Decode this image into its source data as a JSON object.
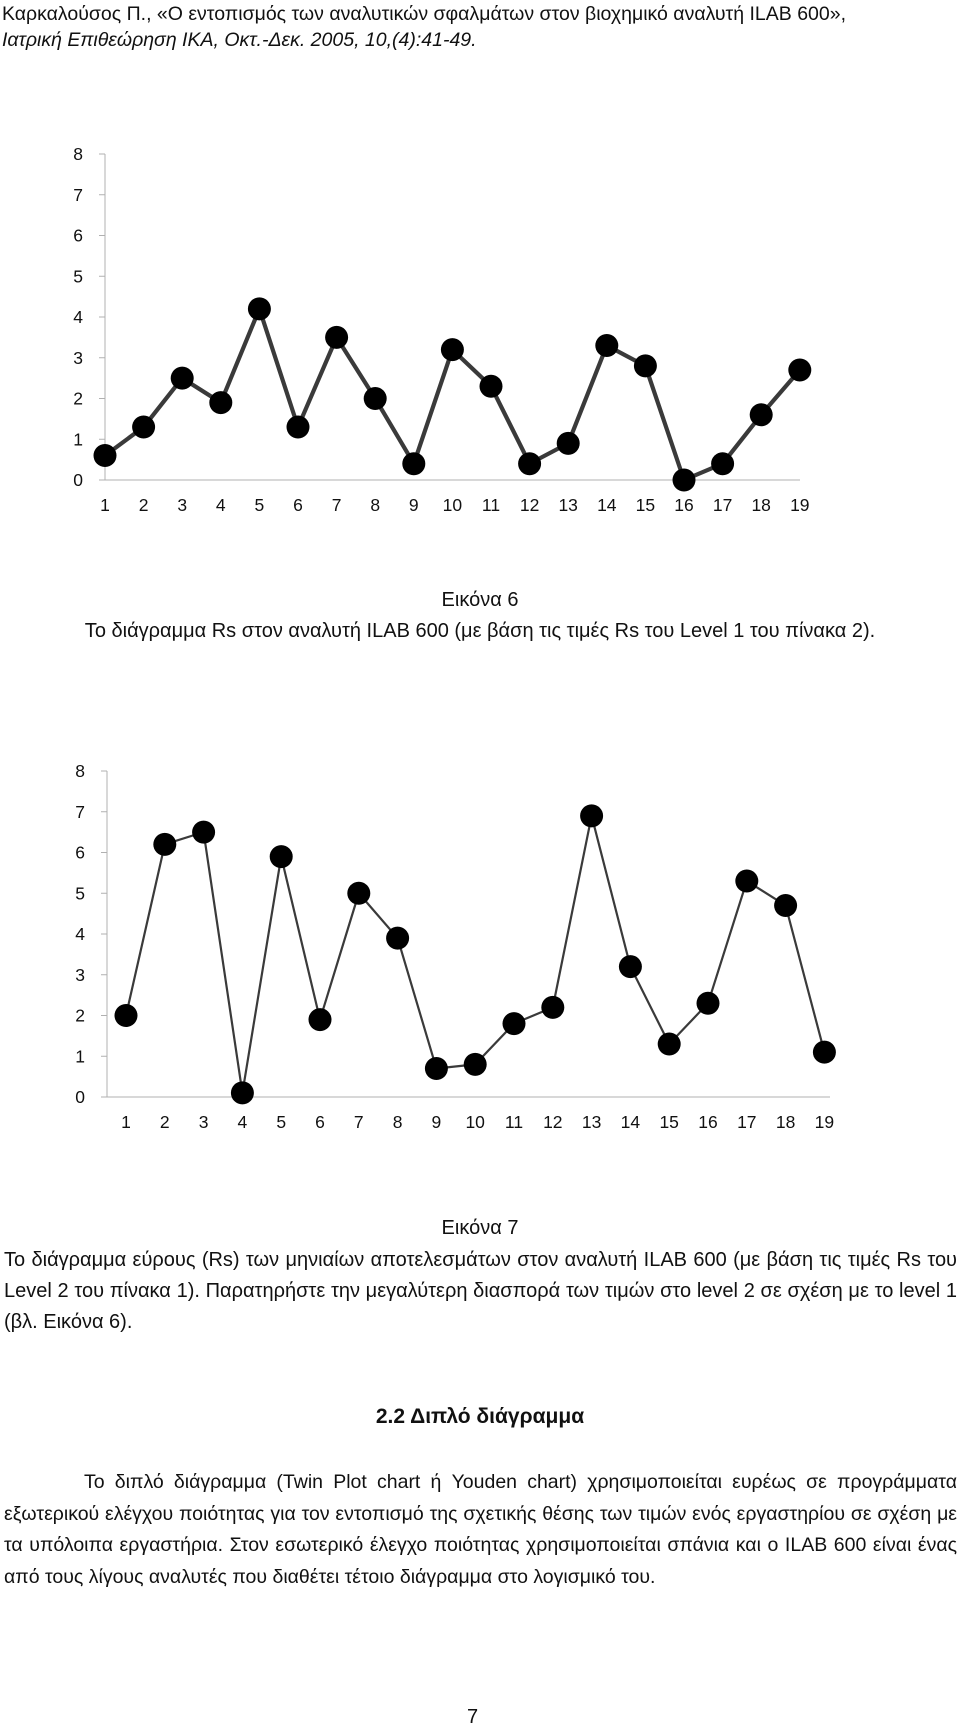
{
  "header": {
    "citation_line1": "Καρκαλούσος Π., «Ο εντοπισμός των αναλυτικών σφαλμάτων στον βιοχημικό αναλυτή ILAB 600»,",
    "citation_line2": "Ιατρική Επιθεώρηση ΙΚΑ, Οκτ.-Δεκ. 2005, 10,(4):41-49."
  },
  "figure6": {
    "label": "Εικόνα 6",
    "caption": "Το διάγραμμα Rs στον αναλυτή ILAB 600 (με βάση τις τιμές Rs του Level 1 του πίνακα 2)."
  },
  "figure7": {
    "label": "Εικόνα 7",
    "caption": "Το διάγραμμα εύρους (Rs) των μηνιαίων αποτελεσμάτων στον αναλυτή ILAB 600 (με βάση τις τιμές Rs του Level 2 του πίνακα 1). Παρατηρήστε την μεγαλύτερη διασπορά των τιμών στο level 2 σε σχέση με το level 1 (βλ. Εικόνα 6)."
  },
  "section": {
    "heading": "2.2 Διπλό διάγραμμα",
    "paragraph": "Το διπλό διάγραμμα (Twin Plot chart ή Youden chart) χρησιμοποιείται ευρέως σε προγράμματα εξωτερικού ελέγχου ποιότητας για τον εντοπισμό της σχετικής θέσης των τιμών ενός εργαστηρίου σε σχέση με τα υπόλοιπα εργαστήρια. Στον εσωτερικό έλεγχο ποιότητας χρησιμοποιείται σπάνια και ο ILAB 600 είναι ένας από τους λίγους αναλυτές που διαθέτει τέτοιο διάγραμμα στο λογισμικό του."
  },
  "page_number": "7",
  "chart_data": [
    {
      "type": "line",
      "title": "",
      "xlabel": "",
      "ylabel": "",
      "categories": [
        "1",
        "2",
        "3",
        "4",
        "5",
        "6",
        "7",
        "8",
        "9",
        "10",
        "11",
        "12",
        "13",
        "14",
        "15",
        "16",
        "17",
        "18",
        "19"
      ],
      "series": [
        {
          "values": [
            0.6,
            1.3,
            2.5,
            1.9,
            4.2,
            1.3,
            3.5,
            2.0,
            0.4,
            3.2,
            2.3,
            0.4,
            0.9,
            3.3,
            2.8,
            0.0,
            0.4,
            1.6,
            2.7
          ]
        }
      ],
      "ylim": [
        0,
        8
      ],
      "yticks": [
        "0",
        "1",
        "2",
        "3",
        "4",
        "5",
        "6",
        "7",
        "8"
      ],
      "grid": false,
      "legend": "none",
      "line_color": "#3a3a3a",
      "marker_color": "#000000"
    },
    {
      "type": "line",
      "title": "",
      "xlabel": "",
      "ylabel": "",
      "categories": [
        "1",
        "2",
        "3",
        "4",
        "5",
        "6",
        "7",
        "8",
        "9",
        "10",
        "11",
        "12",
        "13",
        "14",
        "15",
        "16",
        "17",
        "18",
        "19"
      ],
      "series": [
        {
          "values": [
            2.0,
            6.2,
            6.5,
            0.1,
            5.9,
            1.9,
            5.0,
            3.9,
            0.7,
            0.8,
            1.8,
            2.2,
            6.9,
            3.2,
            1.3,
            2.3,
            5.3,
            4.7,
            1.1
          ]
        }
      ],
      "ylim": [
        0,
        8
      ],
      "yticks": [
        "0",
        "1",
        "2",
        "3",
        "4",
        "5",
        "6",
        "7",
        "8"
      ],
      "grid": false,
      "legend": "none",
      "line_color": "#3a3a3a",
      "marker_color": "#000000"
    }
  ]
}
